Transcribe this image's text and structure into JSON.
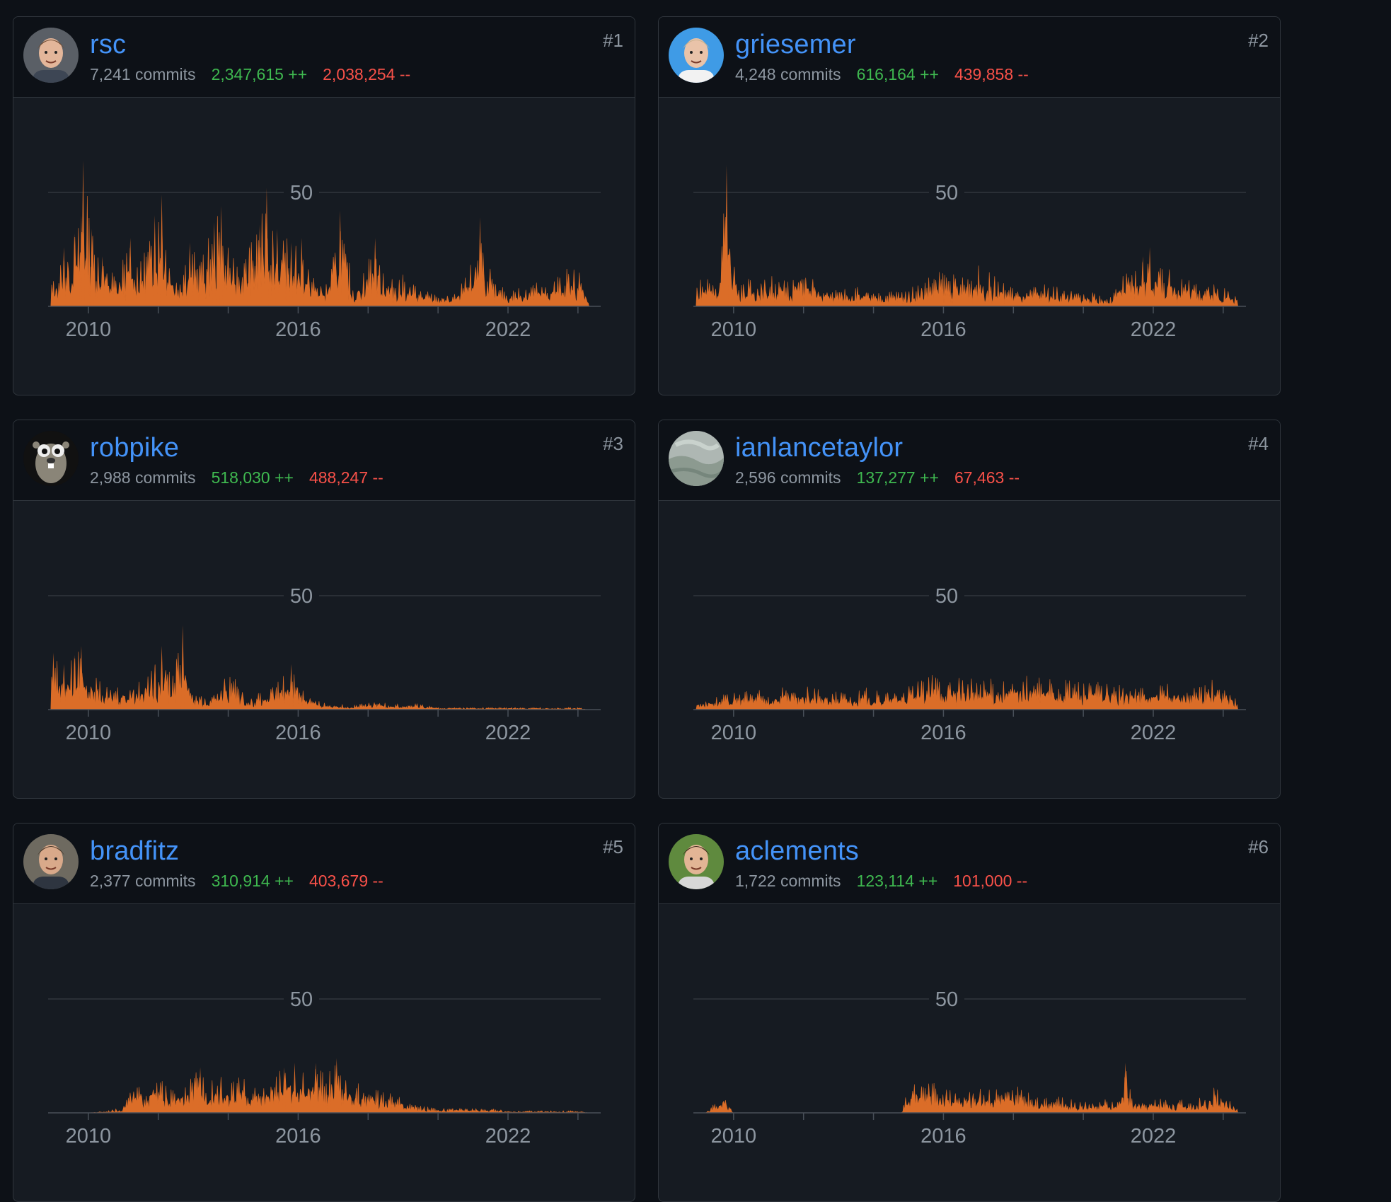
{
  "colors": {
    "background": "#0d1117",
    "card": "#161b22",
    "border": "#30363d",
    "link": "#4493f8",
    "muted": "#8d96a0",
    "additions": "#3fb950",
    "deletions": "#f85149",
    "area_fill": "#db6d28"
  },
  "contributors": [
    {
      "rank": "#1",
      "login": "rsc",
      "commits": "7,241 commits",
      "additions": "2,347,615 ++",
      "deletions": "2,038,254 --",
      "avatar_icon": "avatar-photo-icon",
      "chart_data": {
        "type": "area",
        "ylabel_ticks": [
          "50"
        ],
        "xticks": [
          "2010",
          "2016",
          "2022"
        ],
        "x_range": [
          "2008-11",
          "2024-08"
        ],
        "y_range": [
          0,
          70
        ],
        "grid": "single line at 50",
        "peaks": [
          [
            2009.0,
            12
          ],
          [
            2009.3,
            26
          ],
          [
            2009.6,
            32
          ],
          [
            2009.8,
            40
          ],
          [
            2009.85,
            64
          ],
          [
            2010.1,
            34
          ],
          [
            2010.4,
            22
          ],
          [
            2010.8,
            14
          ],
          [
            2011.2,
            30
          ],
          [
            2011.5,
            20
          ],
          [
            2011.9,
            40
          ],
          [
            2012.1,
            49
          ],
          [
            2012.5,
            14
          ],
          [
            2012.9,
            28
          ],
          [
            2013.2,
            20
          ],
          [
            2013.6,
            37
          ],
          [
            2013.8,
            44
          ],
          [
            2014.2,
            18
          ],
          [
            2014.6,
            27
          ],
          [
            2014.9,
            36
          ],
          [
            2015.1,
            52
          ],
          [
            2015.4,
            34
          ],
          [
            2015.8,
            28
          ],
          [
            2016.1,
            30
          ],
          [
            2016.4,
            15
          ],
          [
            2016.8,
            10
          ],
          [
            2017.2,
            42
          ],
          [
            2017.6,
            8
          ],
          [
            2018.2,
            30
          ],
          [
            2018.6,
            12
          ],
          [
            2019.0,
            14
          ],
          [
            2019.5,
            8
          ],
          [
            2020.0,
            5
          ],
          [
            2020.5,
            6
          ],
          [
            2020.9,
            16
          ],
          [
            2021.2,
            39
          ],
          [
            2021.6,
            10
          ],
          [
            2022.1,
            7
          ],
          [
            2022.6,
            12
          ],
          [
            2023.1,
            10
          ],
          [
            2023.6,
            17
          ],
          [
            2024.0,
            18
          ],
          [
            2024.3,
            6
          ]
        ]
      }
    },
    {
      "rank": "#2",
      "login": "griesemer",
      "commits": "4,248 commits",
      "additions": "616,164 ++",
      "deletions": "439,858 --",
      "avatar_icon": "avatar-photo-icon",
      "chart_data": {
        "type": "area",
        "ylabel_ticks": [
          "50"
        ],
        "xticks": [
          "2010",
          "2016",
          "2022"
        ],
        "x_range": [
          "2008-11",
          "2024-08"
        ],
        "y_range": [
          0,
          70
        ],
        "grid": "single line at 50",
        "peaks": [
          [
            2009.0,
            12
          ],
          [
            2009.3,
            15
          ],
          [
            2009.6,
            16
          ],
          [
            2009.8,
            62
          ],
          [
            2010.1,
            14
          ],
          [
            2010.5,
            12
          ],
          [
            2011.0,
            14
          ],
          [
            2011.5,
            12
          ],
          [
            2012.0,
            18
          ],
          [
            2012.5,
            9
          ],
          [
            2013.0,
            8
          ],
          [
            2013.5,
            10
          ],
          [
            2014.0,
            6
          ],
          [
            2014.5,
            7
          ],
          [
            2015.0,
            8
          ],
          [
            2015.5,
            13
          ],
          [
            2016.0,
            16
          ],
          [
            2016.5,
            13
          ],
          [
            2017.0,
            18
          ],
          [
            2017.3,
            15
          ],
          [
            2017.8,
            10
          ],
          [
            2018.3,
            7
          ],
          [
            2018.8,
            10
          ],
          [
            2019.3,
            9
          ],
          [
            2019.8,
            7
          ],
          [
            2020.3,
            6
          ],
          [
            2020.8,
            4
          ],
          [
            2021.1,
            14
          ],
          [
            2021.4,
            16
          ],
          [
            2021.7,
            22
          ],
          [
            2021.9,
            26
          ],
          [
            2022.3,
            18
          ],
          [
            2022.7,
            16
          ],
          [
            2023.2,
            12
          ],
          [
            2023.7,
            11
          ],
          [
            2024.1,
            9
          ],
          [
            2024.4,
            4
          ]
        ]
      }
    },
    {
      "rank": "#3",
      "login": "robpike",
      "commits": "2,988 commits",
      "additions": "518,030 ++",
      "deletions": "488,247 --",
      "avatar_icon": "gopher-avatar-icon",
      "chart_data": {
        "type": "area",
        "ylabel_ticks": [
          "50"
        ],
        "xticks": [
          "2010",
          "2016",
          "2022"
        ],
        "x_range": [
          "2008-11",
          "2024-08"
        ],
        "y_range": [
          0,
          70
        ],
        "grid": "single line at 50",
        "peaks": [
          [
            2009.0,
            25
          ],
          [
            2009.3,
            20
          ],
          [
            2009.6,
            24
          ],
          [
            2009.8,
            28
          ],
          [
            2010.1,
            16
          ],
          [
            2010.5,
            10
          ],
          [
            2011.0,
            12
          ],
          [
            2011.5,
            16
          ],
          [
            2011.9,
            20
          ],
          [
            2012.1,
            28
          ],
          [
            2012.4,
            18
          ],
          [
            2012.7,
            37
          ],
          [
            2013.0,
            8
          ],
          [
            2013.5,
            4
          ],
          [
            2013.8,
            18
          ],
          [
            2014.2,
            14
          ],
          [
            2014.6,
            6
          ],
          [
            2015.0,
            8
          ],
          [
            2015.4,
            12
          ],
          [
            2015.8,
            20
          ],
          [
            2016.1,
            12
          ],
          [
            2016.5,
            4
          ],
          [
            2017.0,
            3
          ],
          [
            2017.5,
            2
          ],
          [
            2018.0,
            3
          ],
          [
            2018.5,
            4
          ],
          [
            2019.0,
            2
          ],
          [
            2019.5,
            3
          ],
          [
            2020.0,
            1
          ],
          [
            2020.5,
            1
          ],
          [
            2021.0,
            1
          ],
          [
            2021.5,
            1
          ],
          [
            2022.0,
            1
          ],
          [
            2022.5,
            1
          ],
          [
            2023.0,
            1
          ],
          [
            2023.5,
            1
          ],
          [
            2024.0,
            1
          ],
          [
            2024.3,
            0
          ]
        ]
      }
    },
    {
      "rank": "#4",
      "login": "ianlancetaylor",
      "commits": "2,596 commits",
      "additions": "137,277 ++",
      "deletions": "67,463 --",
      "avatar_icon": "landscape-avatar-icon",
      "chart_data": {
        "type": "area",
        "ylabel_ticks": [
          "50"
        ],
        "xticks": [
          "2010",
          "2016",
          "2022"
        ],
        "x_range": [
          "2008-11",
          "2024-08"
        ],
        "y_range": [
          0,
          70
        ],
        "grid": "single line at 50",
        "peaks": [
          [
            2009.0,
            4
          ],
          [
            2009.4,
            6
          ],
          [
            2009.8,
            7
          ],
          [
            2010.2,
            8
          ],
          [
            2010.6,
            9
          ],
          [
            2011.0,
            8
          ],
          [
            2011.4,
            10
          ],
          [
            2011.8,
            9
          ],
          [
            2012.2,
            11
          ],
          [
            2012.6,
            8
          ],
          [
            2013.0,
            9
          ],
          [
            2013.4,
            7
          ],
          [
            2013.8,
            10
          ],
          [
            2014.2,
            8
          ],
          [
            2014.6,
            9
          ],
          [
            2015.0,
            12
          ],
          [
            2015.4,
            13
          ],
          [
            2015.8,
            17
          ],
          [
            2016.2,
            14
          ],
          [
            2016.6,
            16
          ],
          [
            2017.0,
            12
          ],
          [
            2017.4,
            14
          ],
          [
            2017.8,
            13
          ],
          [
            2018.2,
            16
          ],
          [
            2018.6,
            14
          ],
          [
            2019.0,
            15
          ],
          [
            2019.4,
            13
          ],
          [
            2019.8,
            14
          ],
          [
            2020.2,
            12
          ],
          [
            2020.6,
            13
          ],
          [
            2021.0,
            11
          ],
          [
            2021.4,
            12
          ],
          [
            2021.8,
            10
          ],
          [
            2022.2,
            11
          ],
          [
            2022.6,
            12
          ],
          [
            2023.0,
            10
          ],
          [
            2023.4,
            11
          ],
          [
            2023.8,
            14
          ],
          [
            2024.1,
            10
          ],
          [
            2024.4,
            4
          ]
        ]
      }
    },
    {
      "rank": "#5",
      "login": "bradfitz",
      "commits": "2,377 commits",
      "additions": "310,914 ++",
      "deletions": "403,679 --",
      "avatar_icon": "avatar-photo-icon",
      "chart_data": {
        "type": "area",
        "ylabel_ticks": [
          "50"
        ],
        "xticks": [
          "2010",
          "2016",
          "2022"
        ],
        "x_range": [
          "2008-11",
          "2024-08"
        ],
        "y_range": [
          0,
          70
        ],
        "grid": "single line at 50",
        "peaks": [
          [
            2010.0,
            0
          ],
          [
            2010.5,
            1
          ],
          [
            2010.9,
            2
          ],
          [
            2011.2,
            11
          ],
          [
            2011.6,
            14
          ],
          [
            2012.0,
            16
          ],
          [
            2012.4,
            10
          ],
          [
            2012.8,
            14
          ],
          [
            2013.2,
            20
          ],
          [
            2013.6,
            18
          ],
          [
            2014.0,
            14
          ],
          [
            2014.4,
            16
          ],
          [
            2014.8,
            12
          ],
          [
            2015.2,
            16
          ],
          [
            2015.6,
            20
          ],
          [
            2015.9,
            22
          ],
          [
            2016.2,
            18
          ],
          [
            2016.5,
            22
          ],
          [
            2016.8,
            16
          ],
          [
            2017.1,
            24
          ],
          [
            2017.4,
            18
          ],
          [
            2017.7,
            14
          ],
          [
            2018.1,
            10
          ],
          [
            2018.5,
            12
          ],
          [
            2018.9,
            8
          ],
          [
            2019.3,
            4
          ],
          [
            2019.7,
            3
          ],
          [
            2020.1,
            2
          ],
          [
            2020.5,
            2
          ],
          [
            2021.0,
            2
          ],
          [
            2021.5,
            2
          ],
          [
            2022.0,
            1
          ],
          [
            2022.5,
            1
          ],
          [
            2023.0,
            1
          ],
          [
            2023.5,
            1
          ],
          [
            2024.0,
            1
          ],
          [
            2024.3,
            0
          ]
        ]
      }
    },
    {
      "rank": "#6",
      "login": "aclements",
      "commits": "1,722 commits",
      "additions": "123,114 ++",
      "deletions": "101,000 --",
      "avatar_icon": "avatar-photo-icon",
      "chart_data": {
        "type": "area",
        "ylabel_ticks": [
          "50"
        ],
        "xticks": [
          "2010",
          "2016",
          "2022"
        ],
        "x_range": [
          "2008-11",
          "2024-08"
        ],
        "y_range": [
          0,
          70
        ],
        "grid": "single line at 50",
        "peaks": [
          [
            2009.2,
            0
          ],
          [
            2009.5,
            5
          ],
          [
            2009.7,
            9
          ],
          [
            2009.9,
            4
          ],
          [
            2010.0,
            0
          ],
          [
            2014.8,
            0
          ],
          [
            2015.0,
            12
          ],
          [
            2015.4,
            14
          ],
          [
            2015.8,
            13
          ],
          [
            2016.2,
            12
          ],
          [
            2016.6,
            10
          ],
          [
            2017.0,
            13
          ],
          [
            2017.4,
            12
          ],
          [
            2017.8,
            10
          ],
          [
            2018.2,
            12
          ],
          [
            2018.6,
            9
          ],
          [
            2019.0,
            8
          ],
          [
            2019.4,
            7
          ],
          [
            2019.8,
            6
          ],
          [
            2020.2,
            5
          ],
          [
            2020.6,
            6
          ],
          [
            2021.0,
            5
          ],
          [
            2021.2,
            22
          ],
          [
            2021.4,
            6
          ],
          [
            2021.8,
            5
          ],
          [
            2022.2,
            7
          ],
          [
            2022.6,
            6
          ],
          [
            2023.0,
            6
          ],
          [
            2023.4,
            7
          ],
          [
            2023.8,
            12
          ],
          [
            2024.1,
            7
          ],
          [
            2024.4,
            3
          ]
        ]
      }
    }
  ]
}
